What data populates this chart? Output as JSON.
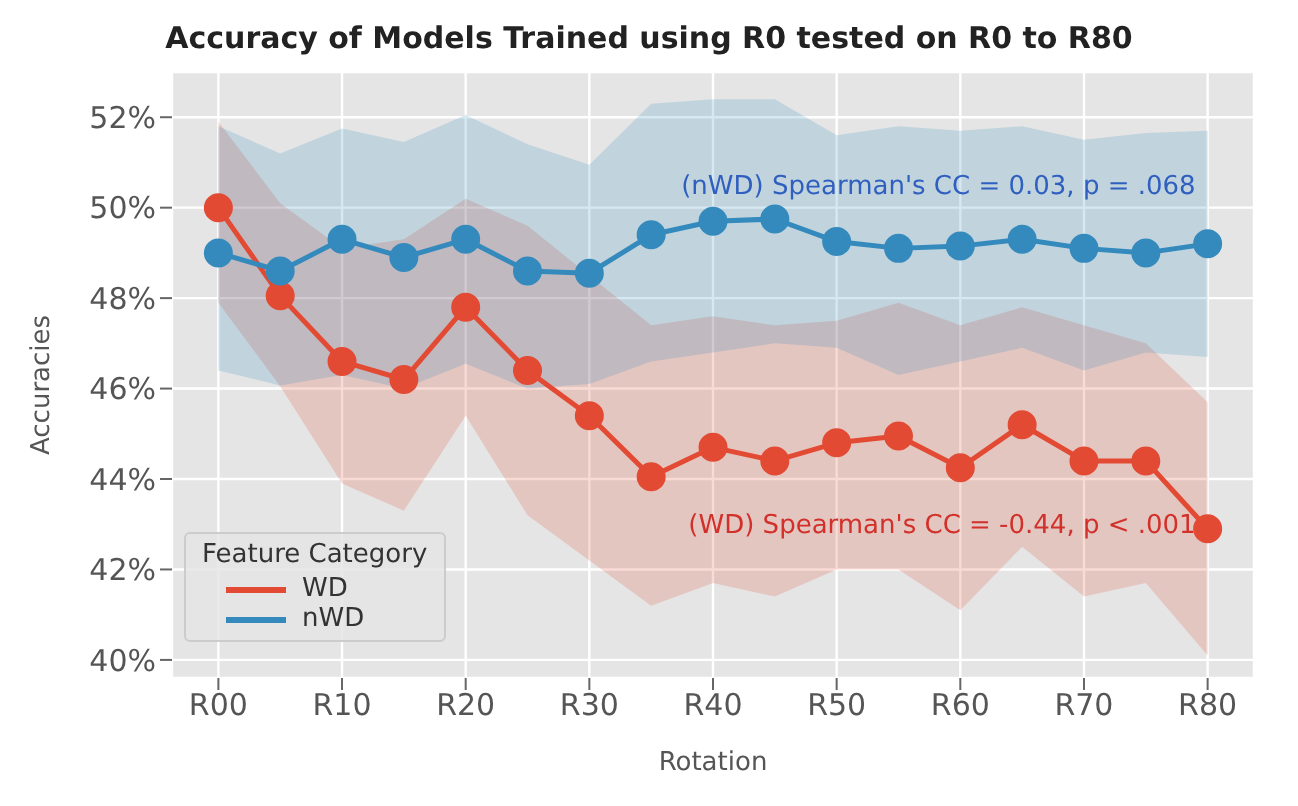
{
  "chart_data": {
    "type": "line",
    "title": "Accuracy of Models Trained using R0 tested on  R0 to R80",
    "xlabel": "Rotation",
    "ylabel": "Accuracies",
    "legend_title": "Feature Category",
    "categories": [
      "R00",
      null,
      "R10",
      null,
      "R20",
      null,
      "R30",
      null,
      "R40",
      null,
      "R50",
      null,
      "R60",
      null,
      "R70",
      null,
      "R80"
    ],
    "series": [
      {
        "name": "WD",
        "color": "#e24a33",
        "values": [
          50.0,
          48.05,
          46.6,
          46.2,
          47.8,
          46.4,
          45.4,
          44.05,
          44.7,
          44.4,
          44.8,
          44.95,
          44.25,
          45.2,
          44.4,
          44.4,
          42.9
        ],
        "lower": [
          47.9,
          46.05,
          43.9,
          43.3,
          45.4,
          43.2,
          42.2,
          41.2,
          41.7,
          41.4,
          42.0,
          42.0,
          41.1,
          42.5,
          41.4,
          41.7,
          40.1
        ],
        "upper": [
          51.9,
          50.1,
          49.1,
          49.3,
          50.2,
          49.6,
          48.5,
          47.4,
          47.6,
          47.4,
          47.5,
          47.9,
          47.4,
          47.8,
          47.4,
          47.0,
          45.7
        ]
      },
      {
        "name": "nWD",
        "color": "#348abd",
        "values": [
          49.0,
          48.6,
          49.3,
          48.9,
          49.3,
          48.6,
          48.55,
          49.4,
          49.7,
          49.75,
          49.25,
          49.1,
          49.15,
          49.3,
          49.1,
          49.0,
          49.2
        ],
        "lower": [
          46.4,
          46.07,
          46.3,
          46.0,
          46.55,
          46.0,
          46.1,
          46.6,
          46.8,
          47.0,
          46.9,
          46.3,
          46.6,
          46.9,
          46.4,
          46.8,
          46.7
        ],
        "upper": [
          51.8,
          51.2,
          51.75,
          51.45,
          52.05,
          51.4,
          50.95,
          52.3,
          52.4,
          52.4,
          51.6,
          51.8,
          51.7,
          51.8,
          51.5,
          51.65,
          51.7
        ]
      }
    ],
    "ylim": [
      39.6,
      53.0
    ],
    "yticks": [
      {
        "value": 40,
        "label": "40%"
      },
      {
        "value": 42,
        "label": "42%"
      },
      {
        "value": 44,
        "label": "44%"
      },
      {
        "value": 46,
        "label": "46%"
      },
      {
        "value": 48,
        "label": "48%"
      },
      {
        "value": 50,
        "label": "50%"
      },
      {
        "value": 52,
        "label": "52%"
      }
    ],
    "annotations": [
      {
        "text": "(nWD) Spearman's CC = 0.03, p = .068",
        "x": "R80",
        "y": 50.5
      },
      {
        "text": "(WD) Spearman's CC = -0.44, p < .001",
        "x": "R80",
        "y": 43.0
      }
    ],
    "grid": true,
    "legend": "bottom left",
    "marker": "circle",
    "line_style": "solid"
  }
}
